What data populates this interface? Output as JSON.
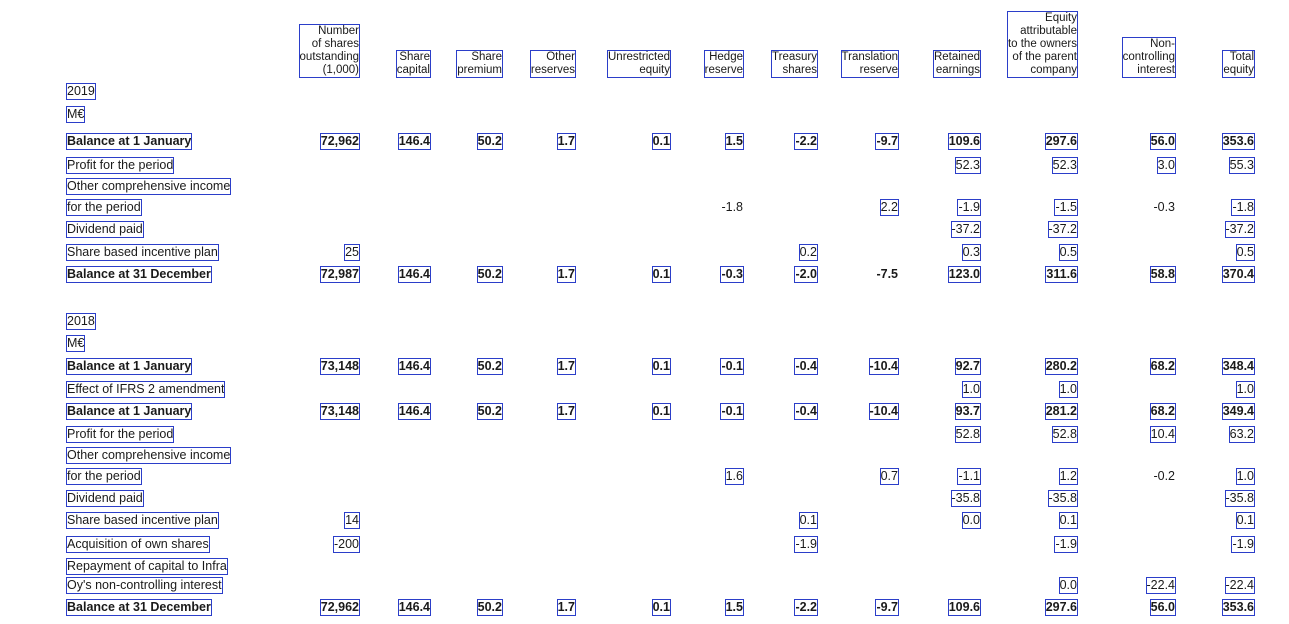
{
  "headers": [
    [
      "Number",
      "of shares",
      "outstanding",
      "(1,000)"
    ],
    [
      "Share",
      "capital"
    ],
    [
      "Share",
      "premium"
    ],
    [
      "Other",
      "reserves"
    ],
    [
      "Unrestricted",
      "equity"
    ],
    [
      "Hedge",
      "reserve"
    ],
    [
      "Treasury",
      "shares"
    ],
    [
      "Translation",
      "reserve"
    ],
    [
      "Retained",
      "earnings"
    ],
    [
      "Equity",
      "attributable",
      "to the owners",
      "of the parent",
      "company"
    ],
    [
      "Non-",
      "controlling",
      "interest"
    ],
    [
      "Total",
      "equity"
    ]
  ],
  "sections": [
    {
      "year": "2019",
      "unit": "M€",
      "rows": [
        {
          "label": "Balance at 1 January",
          "bold": true,
          "cells": [
            "72,962",
            "146.4",
            "50.2",
            "1.7",
            "0.1",
            "1.5",
            "-2.2",
            "-9.7",
            "109.6",
            "297.6",
            "56.0",
            "353.6"
          ]
        },
        {
          "label": "Profit for the period",
          "cells": [
            "",
            "",
            "",
            "",
            "",
            "",
            "",
            "",
            "52.3",
            "52.3",
            "3.0",
            "55.3"
          ]
        },
        {
          "label": "Other comprehensive income",
          "cells": [
            "",
            "",
            "",
            "",
            "",
            "",
            "",
            "",
            "",
            "",
            "",
            ""
          ]
        },
        {
          "label": "for the period",
          "cells": [
            "",
            "",
            "",
            "",
            "",
            "-1.8",
            "",
            "2.2",
            "-1.9",
            "-1.5",
            "-0.3",
            "-1.8"
          ]
        },
        {
          "label": "Dividend paid",
          "cells": [
            "",
            "",
            "",
            "",
            "",
            "",
            "",
            "",
            "-37.2",
            "-37.2",
            "",
            "-37.2"
          ]
        },
        {
          "label": "Share based incentive plan",
          "cells": [
            "25",
            "",
            "",
            "",
            "",
            "",
            "0.2",
            "",
            "0.3",
            "0.5",
            "",
            "0.5"
          ]
        },
        {
          "label": "Balance at 31 December",
          "bold": true,
          "cells": [
            "72,987",
            "146.4",
            "50.2",
            "1.7",
            "0.1",
            "-0.3",
            "-2.0",
            "-7.5",
            "123.0",
            "311.6",
            "58.8",
            "370.4"
          ]
        }
      ]
    },
    {
      "year": "2018",
      "unit": "M€",
      "rows": [
        {
          "label": "Balance at 1 January",
          "bold": true,
          "cells": [
            "73,148",
            "146.4",
            "50.2",
            "1.7",
            "0.1",
            "-0.1",
            "-0.4",
            "-10.4",
            "92.7",
            "280.2",
            "68.2",
            "348.4"
          ]
        },
        {
          "label": "Effect of IFRS 2 amendment",
          "cells": [
            "",
            "",
            "",
            "",
            "",
            "",
            "",
            "",
            "1.0",
            "1.0",
            "",
            "1.0"
          ]
        },
        {
          "label": "Balance at 1 January",
          "bold": true,
          "cells": [
            "73,148",
            "146.4",
            "50.2",
            "1.7",
            "0.1",
            "-0.1",
            "-0.4",
            "-10.4",
            "93.7",
            "281.2",
            "68.2",
            "349.4"
          ]
        },
        {
          "label": "Profit for the period",
          "cells": [
            "",
            "",
            "",
            "",
            "",
            "",
            "",
            "",
            "52.8",
            "52.8",
            "10.4",
            "63.2"
          ]
        },
        {
          "label": "Other comprehensive income",
          "cells": [
            "",
            "",
            "",
            "",
            "",
            "",
            "",
            "",
            "",
            "",
            "",
            ""
          ]
        },
        {
          "label": "for the period",
          "cells": [
            "",
            "",
            "",
            "",
            "",
            "1.6",
            "",
            "0.7",
            "-1.1",
            "1.2",
            "-0.2",
            "1.0"
          ]
        },
        {
          "label": "Dividend paid",
          "cells": [
            "",
            "",
            "",
            "",
            "",
            "",
            "",
            "",
            "-35.8",
            "-35.8",
            "",
            "-35.8"
          ]
        },
        {
          "label": "Share based incentive plan",
          "cells": [
            "14",
            "",
            "",
            "",
            "",
            "",
            "0.1",
            "",
            "0.0",
            "0.1",
            "",
            "0.1"
          ]
        },
        {
          "label": "Acquisition of own shares",
          "cells": [
            "-200",
            "",
            "",
            "",
            "",
            "",
            "-1.9",
            "",
            "",
            "-1.9",
            "",
            "-1.9"
          ]
        },
        {
          "label": "Repayment of capital to Infra",
          "cells": [
            "",
            "",
            "",
            "",
            "",
            "",
            "",
            "",
            "",
            "",
            "",
            ""
          ]
        },
        {
          "label": "Oy's non-controlling interest",
          "cells": [
            "",
            "",
            "",
            "",
            "",
            "",
            "",
            "",
            "",
            "0.0",
            "-22.4",
            "-22.4"
          ]
        },
        {
          "label": "Balance at 31 December",
          "bold": true,
          "cells": [
            "72,962",
            "146.4",
            "50.2",
            "1.7",
            "0.1",
            "1.5",
            "-2.2",
            "-9.7",
            "109.6",
            "297.6",
            "56.0",
            "353.6"
          ]
        }
      ]
    }
  ]
}
